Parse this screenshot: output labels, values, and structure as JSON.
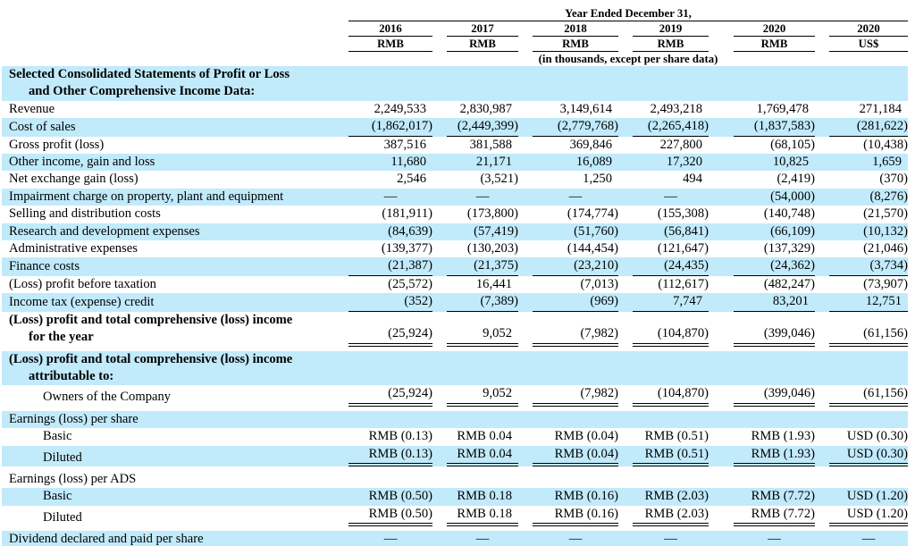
{
  "colors": {
    "row_highlight": "#c1eafb",
    "rule": "#000000",
    "text": "#000000"
  },
  "table": {
    "header": {
      "span_title": "Year Ended December 31,",
      "note": "(in thousands, except per share data)",
      "columns": [
        {
          "year": "2016",
          "currency": "RMB"
        },
        {
          "year": "2017",
          "currency": "RMB"
        },
        {
          "year": "2018",
          "currency": "RMB"
        },
        {
          "year": "2019",
          "currency": "RMB"
        },
        {
          "year": "2020",
          "currency": "RMB"
        },
        {
          "year": "2020",
          "currency": "US$"
        }
      ]
    },
    "rows": [
      {
        "label": [
          "Selected Consolidated Statements of Profit or Loss",
          "and Other Comprehensive Income Data:"
        ],
        "bold": true,
        "bg": "hl",
        "values": null
      },
      {
        "label": "Revenue",
        "bg": "w",
        "values": [
          "2,249,533",
          "2,830,987",
          "3,149,614",
          "2,493,218",
          "1,769,478",
          "271,184"
        ]
      },
      {
        "label": "Cost of sales",
        "bg": "hl",
        "underline": "single",
        "values": [
          "(1,862,017)",
          "(2,449,399)",
          "(2,779,768)",
          "(2,265,418)",
          "(1,837,583)",
          "(281,622)"
        ]
      },
      {
        "label": "Gross profit (loss)",
        "bg": "w",
        "values": [
          "387,516",
          "381,588",
          "369,846",
          "227,800",
          "(68,105)",
          "(10,438)"
        ]
      },
      {
        "label": "Other income, gain and loss",
        "bg": "hl",
        "values": [
          "11,680",
          "21,171",
          "16,089",
          "17,320",
          "10,825",
          "1,659"
        ]
      },
      {
        "label": "Net exchange gain (loss)",
        "bg": "w",
        "values": [
          "2,546",
          "(3,521)",
          "1,250",
          "494",
          "(2,419)",
          "(370)"
        ]
      },
      {
        "label": "Impairment charge on property, plant and equipment",
        "bg": "hl",
        "values": [
          "—",
          "—",
          "—",
          "—",
          "(54,000)",
          "(8,276)"
        ]
      },
      {
        "label": "Selling and distribution costs",
        "bg": "w",
        "values": [
          "(181,911)",
          "(173,800)",
          "(174,774)",
          "(155,308)",
          "(140,748)",
          "(21,570)"
        ]
      },
      {
        "label": "Research and development expenses",
        "bg": "hl",
        "values": [
          "(84,639)",
          "(57,419)",
          "(51,760)",
          "(56,841)",
          "(66,109)",
          "(10,132)"
        ]
      },
      {
        "label": "Administrative expenses",
        "bg": "w",
        "values": [
          "(139,377)",
          "(130,203)",
          "(144,454)",
          "(121,647)",
          "(137,329)",
          "(21,046)"
        ]
      },
      {
        "label": "Finance costs",
        "bg": "hl",
        "underline": "single",
        "values": [
          "(21,387)",
          "(21,375)",
          "(23,210)",
          "(24,435)",
          "(24,362)",
          "(3,734)"
        ]
      },
      {
        "label": "(Loss) profit before taxation",
        "bg": "w",
        "values": [
          "(25,572)",
          "16,441",
          "(7,013)",
          "(112,617)",
          "(482,247)",
          "(73,907)"
        ]
      },
      {
        "label": "Income tax (expense) credit",
        "bg": "hl",
        "underline": "single",
        "values": [
          "(352)",
          "(7,389)",
          "(969)",
          "7,747",
          "83,201",
          "12,751"
        ]
      },
      {
        "label": [
          "(Loss) profit and total comprehensive (loss) income",
          "for the year"
        ],
        "bold": true,
        "bg": "w",
        "underline": "double",
        "spacer_after": true,
        "values": [
          "(25,924)",
          "9,052",
          "(7,982)",
          "(104,870)",
          "(399,046)",
          "(61,156)"
        ]
      },
      {
        "label": [
          "(Loss) profit and total comprehensive (loss) income",
          "attributable to:"
        ],
        "bold": true,
        "bg": "hl",
        "values": null
      },
      {
        "label": "Owners of the Company",
        "indent": 2,
        "bg": "w",
        "underline": "double",
        "spacer_after": true,
        "values": [
          "(25,924)",
          "9,052",
          "(7,982)",
          "(104,870)",
          "(399,046)",
          "(61,156)"
        ]
      },
      {
        "label": "Earnings (loss) per share",
        "bg": "hl",
        "values": null
      },
      {
        "label": "Basic",
        "indent": 2,
        "bg": "w",
        "values": [
          "RMB (0.13)",
          "RMB 0.04",
          "RMB (0.04)",
          "RMB (0.51)",
          "RMB (1.93)",
          "USD (0.30)"
        ]
      },
      {
        "label": "Diluted",
        "indent": 2,
        "bg": "hl",
        "underline": "double",
        "spacer_after": true,
        "values": [
          "RMB (0.13)",
          "RMB 0.04",
          "RMB (0.04)",
          "RMB (0.51)",
          "RMB (1.93)",
          "USD (0.30)"
        ]
      },
      {
        "label": "Earnings (loss) per ADS",
        "bg": "w",
        "values": null
      },
      {
        "label": "Basic",
        "indent": 2,
        "bg": "hl",
        "values": [
          "RMB (0.50)",
          "RMB 0.18",
          "RMB (0.16)",
          "RMB (2.03)",
          "RMB (7.72)",
          "USD (1.20)"
        ]
      },
      {
        "label": "Diluted",
        "indent": 2,
        "bg": "w",
        "underline": "double",
        "spacer_after": true,
        "values": [
          "RMB (0.50)",
          "RMB 0.18",
          "RMB (0.16)",
          "RMB (2.03)",
          "RMB (7.72)",
          "USD (1.20)"
        ]
      },
      {
        "label": "Dividend declared and paid per share",
        "bg": "hl",
        "values": [
          "—",
          "—",
          "—",
          "—",
          "—",
          "—"
        ]
      }
    ]
  }
}
